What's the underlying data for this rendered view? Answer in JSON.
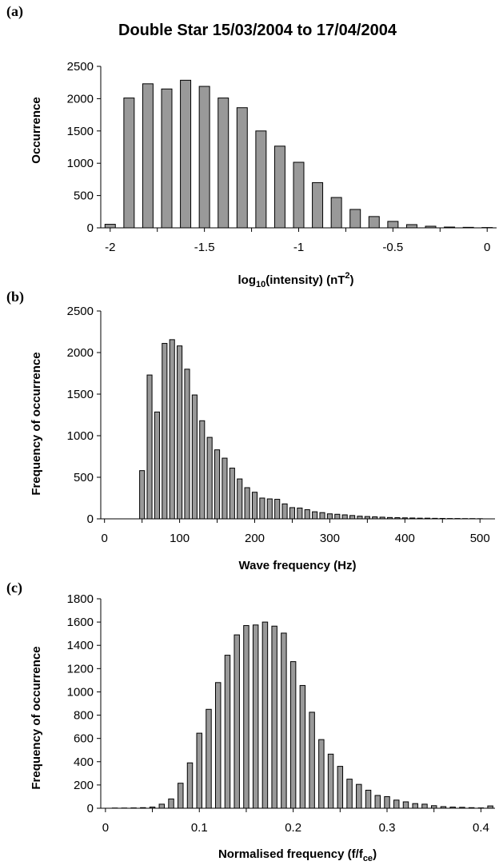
{
  "figure_title": "Double Star 15/03/2004 to 17/04/2004",
  "chart_data": [
    {
      "panel": "(a)",
      "type": "bar",
      "title": "Double Star 15/03/2004 to 17/04/2004",
      "xlabel": "log10(intensity) (nT2)",
      "xlabel_parts": {
        "pre": "log",
        "sub": "10",
        "mid": "(intensity) (nT",
        "sup": "2",
        "post": ")"
      },
      "ylabel": "Occurrence",
      "xlim": [
        -2.05,
        0.05
      ],
      "ylim": [
        0,
        2500
      ],
      "xticks": [
        -2,
        -1.5,
        -1,
        -0.5,
        0
      ],
      "xtick_labels": [
        "-2",
        "-1.5",
        "-1",
        "-0.5",
        "0"
      ],
      "yticks": [
        0,
        500,
        1000,
        1500,
        2000,
        2500
      ],
      "ytick_labels": [
        "0",
        "500",
        "1000",
        "1500",
        "2000",
        "2500"
      ],
      "bar_width": 0.055,
      "x": [
        -2.0,
        -1.9,
        -1.8,
        -1.7,
        -1.6,
        -1.5,
        -1.4,
        -1.3,
        -1.2,
        -1.1,
        -1.0,
        -0.9,
        -0.8,
        -0.7,
        -0.6,
        -0.5,
        -0.4,
        -0.3,
        -0.2,
        -0.1,
        0.0
      ],
      "values": [
        55,
        2010,
        2230,
        2150,
        2285,
        2190,
        2010,
        1860,
        1500,
        1265,
        1015,
        700,
        470,
        285,
        175,
        100,
        50,
        25,
        12,
        8,
        5
      ]
    },
    {
      "panel": "(b)",
      "type": "bar",
      "xlabel": "Wave frequency (Hz)",
      "ylabel": "Frequency of occurrence",
      "xlim": [
        -5,
        520
      ],
      "ylim": [
        0,
        2500
      ],
      "xticks": [
        0,
        100,
        200,
        300,
        400,
        500
      ],
      "xtick_labels": [
        "0",
        "100",
        "200",
        "300",
        "400",
        "500"
      ],
      "yticks": [
        0,
        500,
        1000,
        1500,
        2000,
        2500
      ],
      "ytick_labels": [
        "0",
        "500",
        "1000",
        "1500",
        "2000",
        "2500"
      ],
      "bar_width": 6.5,
      "x": [
        50,
        60,
        70,
        80,
        90,
        100,
        110,
        120,
        130,
        140,
        150,
        160,
        170,
        180,
        190,
        200,
        210,
        220,
        230,
        240,
        250,
        260,
        270,
        280,
        290,
        300,
        310,
        320,
        330,
        340,
        350,
        360,
        370,
        380,
        390,
        400,
        410,
        420,
        430,
        440,
        450,
        460,
        470,
        480,
        490,
        500
      ],
      "values": [
        580,
        1730,
        1285,
        2110,
        2155,
        2080,
        1800,
        1490,
        1180,
        980,
        830,
        730,
        610,
        480,
        375,
        320,
        250,
        240,
        235,
        180,
        135,
        130,
        110,
        85,
        75,
        60,
        55,
        48,
        40,
        32,
        28,
        24,
        20,
        16,
        14,
        12,
        10,
        8,
        8,
        6,
        5,
        4,
        4,
        3,
        3,
        2
      ]
    },
    {
      "panel": "(c)",
      "type": "bar",
      "xlabel": "Normalised frequency (f/fce)",
      "xlabel_parts": {
        "pre": "Normalised frequency (f/f",
        "sub": "ce",
        "post": ")"
      },
      "ylabel": "Frequency of occurrence",
      "xlim": [
        -0.005,
        0.415
      ],
      "ylim": [
        0,
        1800
      ],
      "xticks": [
        0,
        0.1,
        0.2,
        0.3,
        0.4
      ],
      "xtick_labels": [
        "0",
        "0.1",
        "0.2",
        "0.3",
        "0.4"
      ],
      "yticks": [
        0,
        200,
        400,
        600,
        800,
        1000,
        1200,
        1400,
        1600,
        1800
      ],
      "ytick_labels": [
        "0",
        "200",
        "400",
        "600",
        "800",
        "1000",
        "1200",
        "1400",
        "1600",
        "1800"
      ],
      "bar_width": 0.0055,
      "x": [
        0.01,
        0.02,
        0.03,
        0.04,
        0.05,
        0.06,
        0.07,
        0.08,
        0.09,
        0.1,
        0.11,
        0.12,
        0.13,
        0.14,
        0.15,
        0.16,
        0.17,
        0.18,
        0.19,
        0.2,
        0.21,
        0.22,
        0.23,
        0.24,
        0.25,
        0.26,
        0.27,
        0.28,
        0.29,
        0.3,
        0.31,
        0.32,
        0.33,
        0.34,
        0.35,
        0.36,
        0.37,
        0.38,
        0.39,
        0.4,
        0.41
      ],
      "values": [
        2,
        2,
        3,
        5,
        10,
        35,
        80,
        215,
        390,
        645,
        850,
        1080,
        1315,
        1490,
        1570,
        1575,
        1600,
        1565,
        1505,
        1260,
        1055,
        825,
        590,
        465,
        360,
        250,
        205,
        155,
        110,
        100,
        70,
        55,
        40,
        35,
        22,
        14,
        10,
        8,
        5,
        3,
        20
      ]
    }
  ]
}
